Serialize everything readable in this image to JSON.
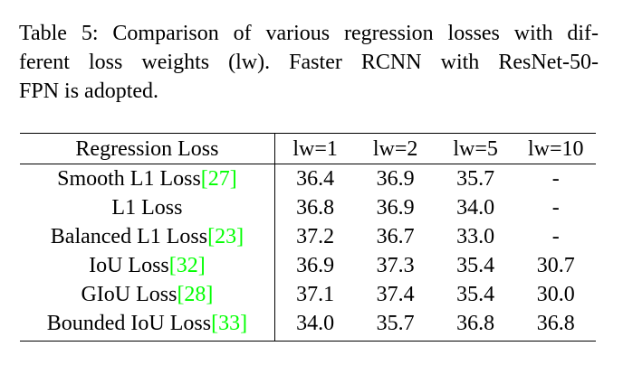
{
  "caption": {
    "line1": "Table 5: Comparison of various regression losses with dif-",
    "line2": "ferent loss weights (lw).  Faster RCNN with ResNet-50-",
    "line3": "FPN is adopted."
  },
  "table": {
    "headers": [
      "Regression Loss",
      "lw=1",
      "lw=2",
      "lw=5",
      "lw=10"
    ],
    "rows": [
      {
        "loss": "Smooth L1 Loss",
        "ref": "[27]",
        "values": [
          "36.4",
          "36.9",
          "35.7",
          "-"
        ]
      },
      {
        "loss": "L1 Loss",
        "ref": "",
        "values": [
          "36.8",
          "36.9",
          "34.0",
          "-"
        ]
      },
      {
        "loss": "Balanced L1 Loss",
        "ref": "[23]",
        "values": [
          "37.2",
          "36.7",
          "33.0",
          "-"
        ]
      },
      {
        "loss": "IoU Loss",
        "ref": "[32]",
        "values": [
          "36.9",
          "37.3",
          "35.4",
          "30.7"
        ]
      },
      {
        "loss": "GIoU Loss",
        "ref": "[28]",
        "values": [
          "37.1",
          "37.4",
          "35.4",
          "30.0"
        ]
      },
      {
        "loss": "Bounded IoU Loss",
        "ref": "[33]",
        "values": [
          "34.0",
          "35.7",
          "36.8",
          "36.8"
        ]
      }
    ],
    "colors": {
      "citation": "#00ff00",
      "text": "#000000"
    }
  }
}
